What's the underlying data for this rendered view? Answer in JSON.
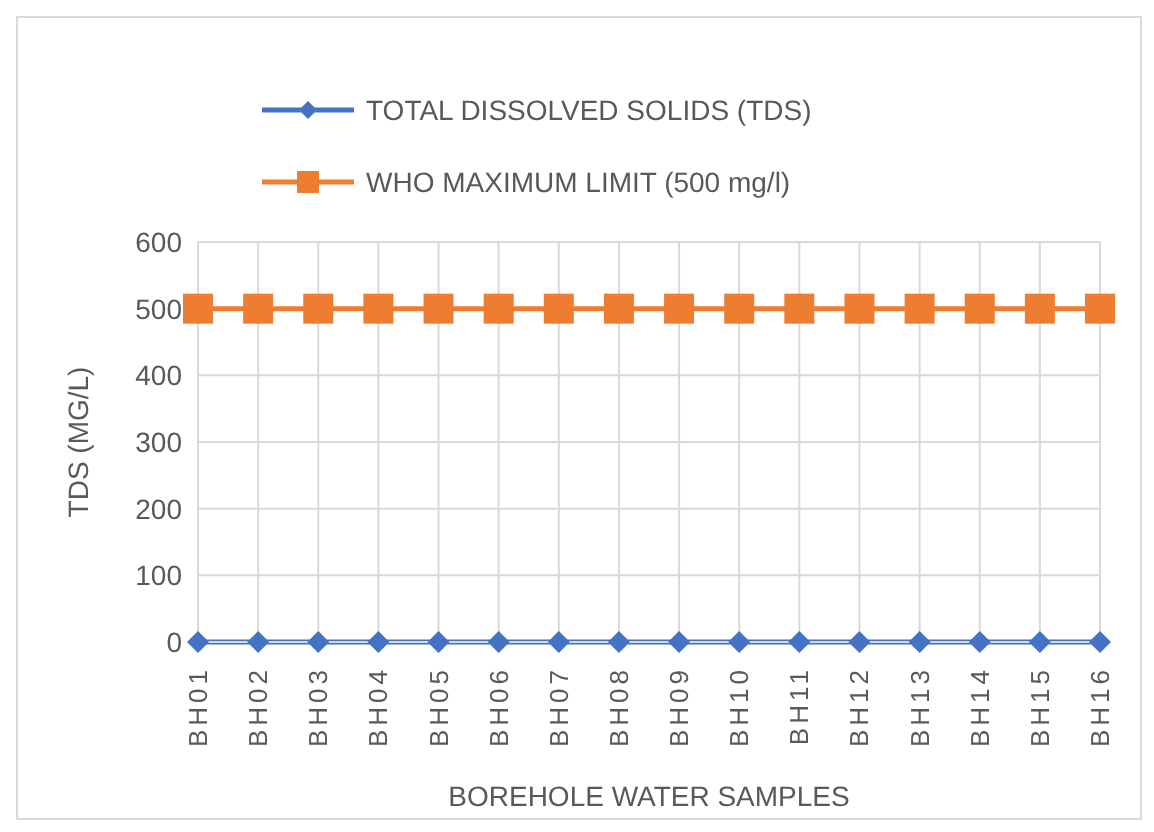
{
  "chart_data": {
    "type": "line",
    "xlabel": "BOREHOLE WATER SAMPLES",
    "ylabel": "TDS (MG/L)",
    "categories": [
      "BH01",
      "BH02",
      "BH03",
      "BH04",
      "BH05",
      "BH06",
      "BH07",
      "BH08",
      "BH09",
      "BH10",
      "BH11",
      "BH12",
      "BH13",
      "BH14",
      "BH15",
      "BH16"
    ],
    "series": [
      {
        "name": "TOTAL DISSOLVED SOLIDS (TDS)",
        "color": "#4472c4",
        "marker": "diamond",
        "values": [
          0,
          0,
          0,
          0,
          0,
          0,
          0,
          0,
          0,
          0,
          0,
          0,
          0,
          0,
          0,
          0
        ]
      },
      {
        "name": "WHO MAXIMUM LIMIT (500 mg/l)",
        "color": "#ed7d31",
        "marker": "square",
        "values": [
          500,
          500,
          500,
          500,
          500,
          500,
          500,
          500,
          500,
          500,
          500,
          500,
          500,
          500,
          500,
          500
        ]
      }
    ],
    "ylim": [
      0,
      600
    ],
    "yticks": [
      0,
      100,
      200,
      300,
      400,
      500,
      600
    ],
    "grid": true,
    "legend": "top"
  }
}
